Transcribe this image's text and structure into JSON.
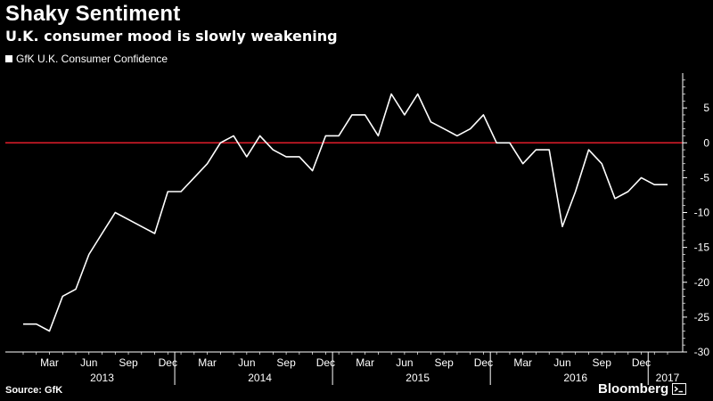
{
  "header": {
    "title": "Shaky Sentiment",
    "subtitle": "U.K. consumer mood is slowly weakening"
  },
  "footer": {
    "source": "Source: GfK",
    "brand": "Bloomberg"
  },
  "colors": {
    "background": "#000000",
    "series_line": "#ffffff",
    "zero_line": "#e11d2a",
    "axis": "#ffffff"
  },
  "chart_data": {
    "type": "line",
    "title": "Shaky Sentiment",
    "subtitle": "U.K. consumer mood is slowly weakening",
    "xlabel": "",
    "ylabel": "",
    "legend": {
      "placement": "top-left",
      "entries": [
        "GfK U.K. Consumer Confidence"
      ]
    },
    "grid": false,
    "ylim": [
      -30,
      10
    ],
    "y_ticks": [
      5,
      0,
      -5,
      -10,
      -15,
      -20,
      -25,
      -30
    ],
    "x_range": [
      "2013-02",
      "2017-03"
    ],
    "x_tick_months": [
      {
        "label": "Mar",
        "date": "2013-03"
      },
      {
        "label": "Jun",
        "date": "2013-06"
      },
      {
        "label": "Sep",
        "date": "2013-09"
      },
      {
        "label": "Dec",
        "date": "2013-12"
      },
      {
        "label": "Mar",
        "date": "2014-03"
      },
      {
        "label": "Jun",
        "date": "2014-06"
      },
      {
        "label": "Sep",
        "date": "2014-09"
      },
      {
        "label": "Dec",
        "date": "2014-12"
      },
      {
        "label": "Mar",
        "date": "2015-03"
      },
      {
        "label": "Jun",
        "date": "2015-06"
      },
      {
        "label": "Sep",
        "date": "2015-09"
      },
      {
        "label": "Dec",
        "date": "2015-12"
      },
      {
        "label": "Mar",
        "date": "2016-03"
      },
      {
        "label": "Jun",
        "date": "2016-06"
      },
      {
        "label": "Sep",
        "date": "2016-09"
      },
      {
        "label": "Dec",
        "date": "2016-12"
      }
    ],
    "x_tick_years": [
      {
        "label": "2013",
        "date": "2013-07"
      },
      {
        "label": "2014",
        "date": "2014-07"
      },
      {
        "label": "2015",
        "date": "2015-07"
      },
      {
        "label": "2016",
        "date": "2016-07"
      },
      {
        "label": "2017",
        "date": "2017-02"
      }
    ],
    "year_boundaries": [
      "2014-01",
      "2015-01",
      "2016-01",
      "2017-01"
    ],
    "reference_lines": [
      {
        "y": 0,
        "color": "#e11d2a"
      }
    ],
    "series": [
      {
        "name": "GfK U.K. Consumer Confidence",
        "color": "#ffffff",
        "x": [
          "2013-01",
          "2013-02",
          "2013-03",
          "2013-04",
          "2013-05",
          "2013-06",
          "2013-07",
          "2013-08",
          "2013-09",
          "2013-10",
          "2013-11",
          "2013-12",
          "2014-01",
          "2014-02",
          "2014-03",
          "2014-04",
          "2014-05",
          "2014-06",
          "2014-07",
          "2014-08",
          "2014-09",
          "2014-10",
          "2014-11",
          "2014-12",
          "2015-01",
          "2015-02",
          "2015-03",
          "2015-04",
          "2015-05",
          "2015-06",
          "2015-07",
          "2015-08",
          "2015-09",
          "2015-10",
          "2015-11",
          "2015-12",
          "2016-01",
          "2016-02",
          "2016-03",
          "2016-04",
          "2016-05",
          "2016-06",
          "2016-07",
          "2016-08",
          "2016-09",
          "2016-10",
          "2016-11",
          "2016-12",
          "2017-01",
          "2017-02"
        ],
        "values": [
          -26,
          -26,
          -27,
          -22,
          -21,
          -16,
          -13,
          -10,
          -11,
          -12,
          -13,
          -7,
          -7,
          -5,
          -3,
          0,
          1,
          -2,
          1,
          -1,
          -2,
          -2,
          -4,
          1,
          1,
          4,
          4,
          1,
          7,
          4,
          7,
          3,
          2,
          1,
          2,
          4,
          0,
          0,
          -3,
          -1,
          -1,
          -12,
          -7,
          -1,
          -3,
          -8,
          -7,
          -5,
          -6,
          -6
        ]
      }
    ]
  }
}
